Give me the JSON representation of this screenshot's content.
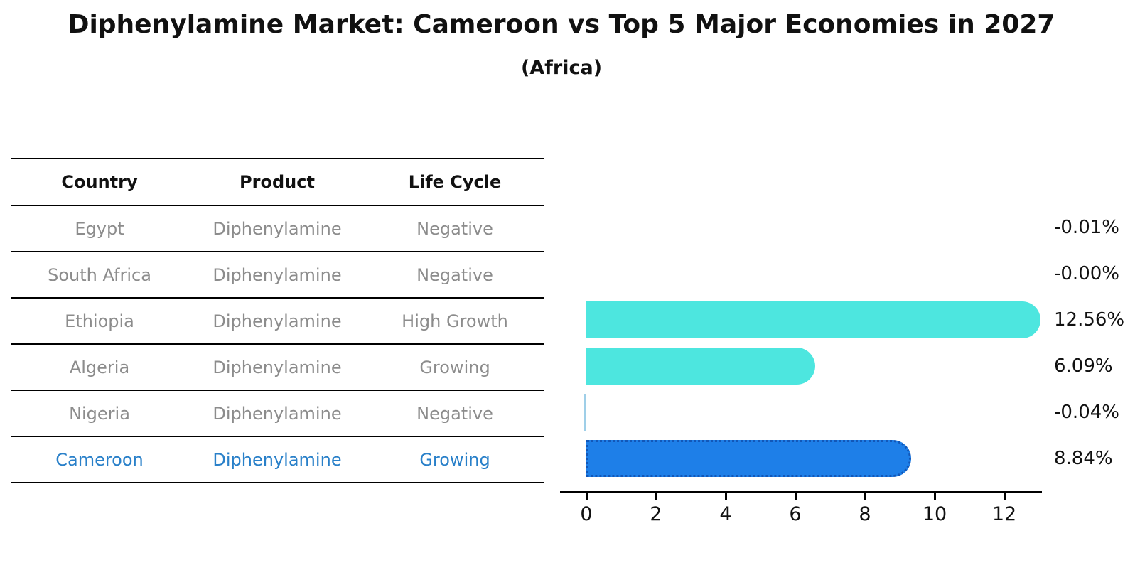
{
  "title": "Diphenylamine Market: Cameroon vs Top 5 Major Economies in 2027",
  "subtitle": "(Africa)",
  "table": {
    "headers": [
      "Country",
      "Product",
      "Life Cycle"
    ],
    "rows": [
      {
        "country": "Egypt",
        "product": "Diphenylamine",
        "life_cycle": "Negative",
        "highlight": false
      },
      {
        "country": "South Africa",
        "product": "Diphenylamine",
        "life_cycle": "Negative",
        "highlight": false
      },
      {
        "country": "Ethiopia",
        "product": "Diphenylamine",
        "life_cycle": "High Growth",
        "highlight": false
      },
      {
        "country": "Algeria",
        "product": "Diphenylamine",
        "life_cycle": "Growing",
        "highlight": false
      },
      {
        "country": "Nigeria",
        "product": "Diphenylamine",
        "life_cycle": "Negative",
        "highlight": false
      },
      {
        "country": "Cameroon",
        "product": "Diphenylamine",
        "life_cycle": "Growing",
        "highlight": true
      }
    ]
  },
  "chart_data": {
    "type": "bar",
    "orientation": "horizontal",
    "categories": [
      "Egypt",
      "South Africa",
      "Ethiopia",
      "Algeria",
      "Nigeria",
      "Cameroon"
    ],
    "values": [
      -0.01,
      -0.0,
      12.56,
      6.09,
      -0.04,
      8.84
    ],
    "value_labels": [
      "-0.01%",
      "-0.00%",
      "12.56%",
      "6.09%",
      "-0.04%",
      "8.84%"
    ],
    "xticks": [
      0,
      2,
      4,
      6,
      8,
      10,
      12
    ],
    "xlim": [
      -0.5,
      13.3
    ],
    "highlight_index": 5,
    "legend": "none",
    "grid": false,
    "colors": {
      "bar_default": "#4de6df",
      "bar_highlight": "#1e7fe8",
      "bar_highlight_border": "#1257b8",
      "bar_negative_sliver": "#9fcfe8",
      "axis": "#000000",
      "value_text": "#111111",
      "table_text": "#8c8c8c",
      "highlight_text": "#2980c9"
    }
  }
}
